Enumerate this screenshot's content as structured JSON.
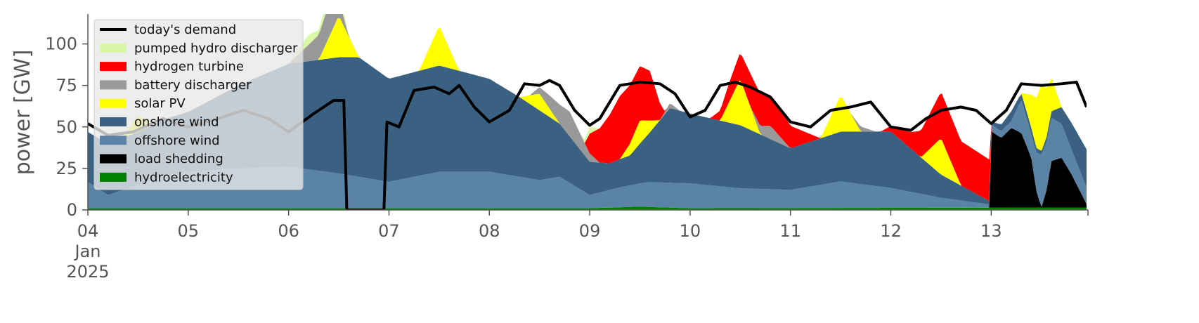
{
  "chart_data": {
    "type": "area",
    "ylabel": "power [GW]",
    "xlabel": "",
    "ylim": [
      0,
      118
    ],
    "xlim": [
      0,
      9.95
    ],
    "x_unit": "days since 04 Jan 2025",
    "yticks": [
      0,
      25,
      50,
      75,
      100
    ],
    "xticks": [
      {
        "x": 0,
        "lines": [
          "04",
          "Jan",
          "2025"
        ]
      },
      {
        "x": 1,
        "lines": [
          "05"
        ]
      },
      {
        "x": 2,
        "lines": [
          "06"
        ]
      },
      {
        "x": 3,
        "lines": [
          "07"
        ]
      },
      {
        "x": 4,
        "lines": [
          "08"
        ]
      },
      {
        "x": 5,
        "lines": [
          "09"
        ]
      },
      {
        "x": 6,
        "lines": [
          "10"
        ]
      },
      {
        "x": 7,
        "lines": [
          "11"
        ]
      },
      {
        "x": 8,
        "lines": [
          "12"
        ]
      },
      {
        "x": 9,
        "lines": [
          "13"
        ]
      }
    ],
    "grid": false,
    "legend_position": "top-left",
    "legend": [
      {
        "name": "today's demand",
        "kind": "line",
        "color": "#000000"
      },
      {
        "name": "pumped hydro discharger",
        "kind": "patch",
        "color": "#d9f7a6"
      },
      {
        "name": "hydrogen turbine",
        "kind": "patch",
        "color": "#ff0000"
      },
      {
        "name": "battery discharger",
        "kind": "patch",
        "color": "#999999"
      },
      {
        "name": "solar PV",
        "kind": "patch",
        "color": "#ffff00"
      },
      {
        "name": "onshore wind",
        "kind": "patch",
        "color": "#3b6182"
      },
      {
        "name": "offshore wind",
        "kind": "patch",
        "color": "#5b83a6"
      },
      {
        "name": "load shedding",
        "kind": "patch",
        "color": "#000000"
      },
      {
        "name": "hydroelectricity",
        "kind": "patch",
        "color": "#008000"
      }
    ],
    "stack_order": [
      "hydroelectricity",
      "load shedding",
      "offshore wind",
      "onshore wind",
      "solar PV",
      "battery discharger",
      "hydrogen turbine",
      "pumped hydro discharger"
    ],
    "series": [
      {
        "name": "hydroelectricity",
        "color": "#008000",
        "x": [
          0,
          5,
          5.5,
          6,
          9.95
        ],
        "values": [
          1,
          1,
          2,
          1,
          1.5
        ]
      },
      {
        "name": "load shedding",
        "color": "#000000",
        "x": [
          0,
          8.98,
          9.0,
          9.1,
          9.2,
          9.3,
          9.4,
          9.45,
          9.5,
          9.55,
          9.6,
          9.7,
          9.8,
          9.95
        ],
        "values": [
          0,
          0,
          46,
          42,
          48,
          45,
          30,
          10,
          0,
          10,
          28,
          30,
          20,
          2
        ]
      },
      {
        "name": "offshore wind",
        "color": "#5b83a6",
        "x": [
          0,
          0.2,
          0.4,
          0.8,
          1.0,
          1.5,
          2.0,
          2.5,
          3.0,
          3.5,
          4.0,
          4.5,
          4.7,
          5.0,
          5.3,
          5.6,
          6.0,
          6.5,
          7.0,
          7.5,
          8.0,
          8.5,
          8.98,
          9.0,
          9.2,
          9.3,
          9.4,
          9.5,
          9.6,
          9.8,
          9.95
        ],
        "values": [
          16,
          8,
          12,
          20,
          22,
          24,
          25,
          21,
          16,
          22,
          22,
          17,
          19,
          8,
          12,
          15,
          15,
          12,
          11,
          16,
          12,
          6,
          2,
          4,
          4,
          20,
          14,
          32,
          26,
          15,
          10
        ]
      },
      {
        "name": "onshore wind",
        "color": "#3b6182",
        "x": [
          0,
          0.5,
          1.0,
          1.5,
          2.0,
          2.5,
          2.7,
          3.0,
          3.5,
          4.0,
          4.3,
          4.5,
          4.7,
          4.85,
          5.0,
          5.2,
          5.4,
          5.6,
          5.8,
          6.0,
          6.5,
          7.0,
          7.5,
          8.0,
          8.3,
          8.5,
          8.98,
          9.0,
          9.2,
          9.3,
          9.4,
          9.5,
          9.6,
          9.8,
          9.95
        ],
        "values": [
          30,
          32,
          36,
          50,
          62,
          70,
          72,
          62,
          64,
          56,
          48,
          42,
          32,
          26,
          20,
          16,
          18,
          30,
          45,
          42,
          38,
          25,
          30,
          34,
          22,
          14,
          2,
          2,
          6,
          4,
          4,
          2,
          4,
          16,
          23
        ]
      },
      {
        "name": "solar PV",
        "color": "#ffff00",
        "x": [
          0,
          0.35,
          0.5,
          0.65,
          1.0,
          2.3,
          2.5,
          2.7,
          3.0,
          3.3,
          3.5,
          3.7,
          4.0,
          4.3,
          4.5,
          4.7,
          5.0,
          5.3,
          5.5,
          5.7,
          6.0,
          6.3,
          6.5,
          6.7,
          7.0,
          7.3,
          7.5,
          7.7,
          8.0,
          8.3,
          8.5,
          8.7,
          9.0,
          9.3,
          9.5,
          9.7,
          9.95
        ],
        "values": [
          0,
          0,
          10,
          0,
          0,
          0,
          25,
          0,
          0,
          0,
          24,
          0,
          0,
          0,
          10,
          0,
          0,
          0,
          14,
          0,
          0,
          0,
          28,
          0,
          0,
          0,
          22,
          0,
          0,
          0,
          22,
          0,
          0,
          0,
          40,
          0,
          0
        ]
      },
      {
        "name": "battery discharger",
        "color": "#999999",
        "x": [
          0,
          2.0,
          2.2,
          2.4,
          2.6,
          3.0,
          4.4,
          4.6,
          4.8,
          4.98,
          5.1,
          5.5,
          5.7,
          5.8,
          5.9,
          6.0,
          6.6,
          6.7,
          6.8,
          6.9,
          7.0,
          7.6,
          7.7,
          7.85,
          8.0,
          9.95
        ],
        "values": [
          0,
          0,
          10,
          20,
          0,
          0,
          0,
          8,
          15,
          6,
          0,
          0,
          0,
          3,
          0,
          0,
          0,
          5,
          8,
          4,
          0,
          0,
          3,
          0,
          0,
          0
        ]
      },
      {
        "name": "hydrogen turbine",
        "color": "#ff0000",
        "x": [
          0,
          0.7,
          1.0,
          4.95,
          5.0,
          5.3,
          5.6,
          5.75,
          6.2,
          6.4,
          6.6,
          6.9,
          7.3,
          7.6,
          7.9,
          8.2,
          8.5,
          8.98,
          9.0,
          9.95
        ],
        "values": [
          0,
          0,
          0,
          0,
          12,
          38,
          30,
          0,
          0,
          12,
          20,
          18,
          0,
          0,
          0,
          10,
          28,
          25,
          0,
          0
        ]
      },
      {
        "name": "pumped hydro discharger",
        "color": "#d9f7a6",
        "x": [
          0,
          2.0,
          2.2,
          2.3,
          2.5,
          2.6,
          4.9,
          5.0,
          5.1,
          9.95
        ],
        "values": [
          0,
          0,
          6,
          3,
          8,
          0,
          0,
          4,
          0,
          0
        ]
      },
      {
        "name": "today's demand",
        "kind": "line",
        "color": "#000000",
        "x": [
          0,
          0.2,
          0.45,
          0.75,
          1.0,
          1.3,
          1.55,
          1.8,
          2.0,
          2.25,
          2.45,
          2.55,
          2.58,
          2.95,
          2.98,
          3.1,
          3.25,
          3.45,
          3.6,
          3.7,
          3.85,
          4.0,
          4.2,
          4.35,
          4.5,
          4.6,
          4.7,
          4.85,
          5.0,
          5.1,
          5.3,
          5.5,
          5.7,
          5.85,
          6.0,
          6.15,
          6.3,
          6.45,
          6.6,
          6.8,
          7.0,
          7.2,
          7.4,
          7.6,
          7.8,
          8.0,
          8.2,
          8.35,
          8.5,
          8.7,
          8.85,
          9.0,
          9.15,
          9.3,
          9.5,
          9.7,
          9.85,
          9.95
        ],
        "values": [
          52,
          45,
          47,
          55,
          50,
          55,
          60,
          55,
          47,
          58,
          66,
          66,
          0,
          0,
          53,
          50,
          72,
          74,
          70,
          75,
          62,
          53,
          60,
          76,
          75,
          78,
          75,
          60,
          51,
          55,
          75,
          77,
          76,
          70,
          56,
          60,
          75,
          77,
          74,
          68,
          53,
          50,
          60,
          62,
          65,
          50,
          48,
          55,
          60,
          62,
          60,
          52,
          60,
          76,
          75,
          76,
          77,
          62
        ]
      }
    ]
  }
}
